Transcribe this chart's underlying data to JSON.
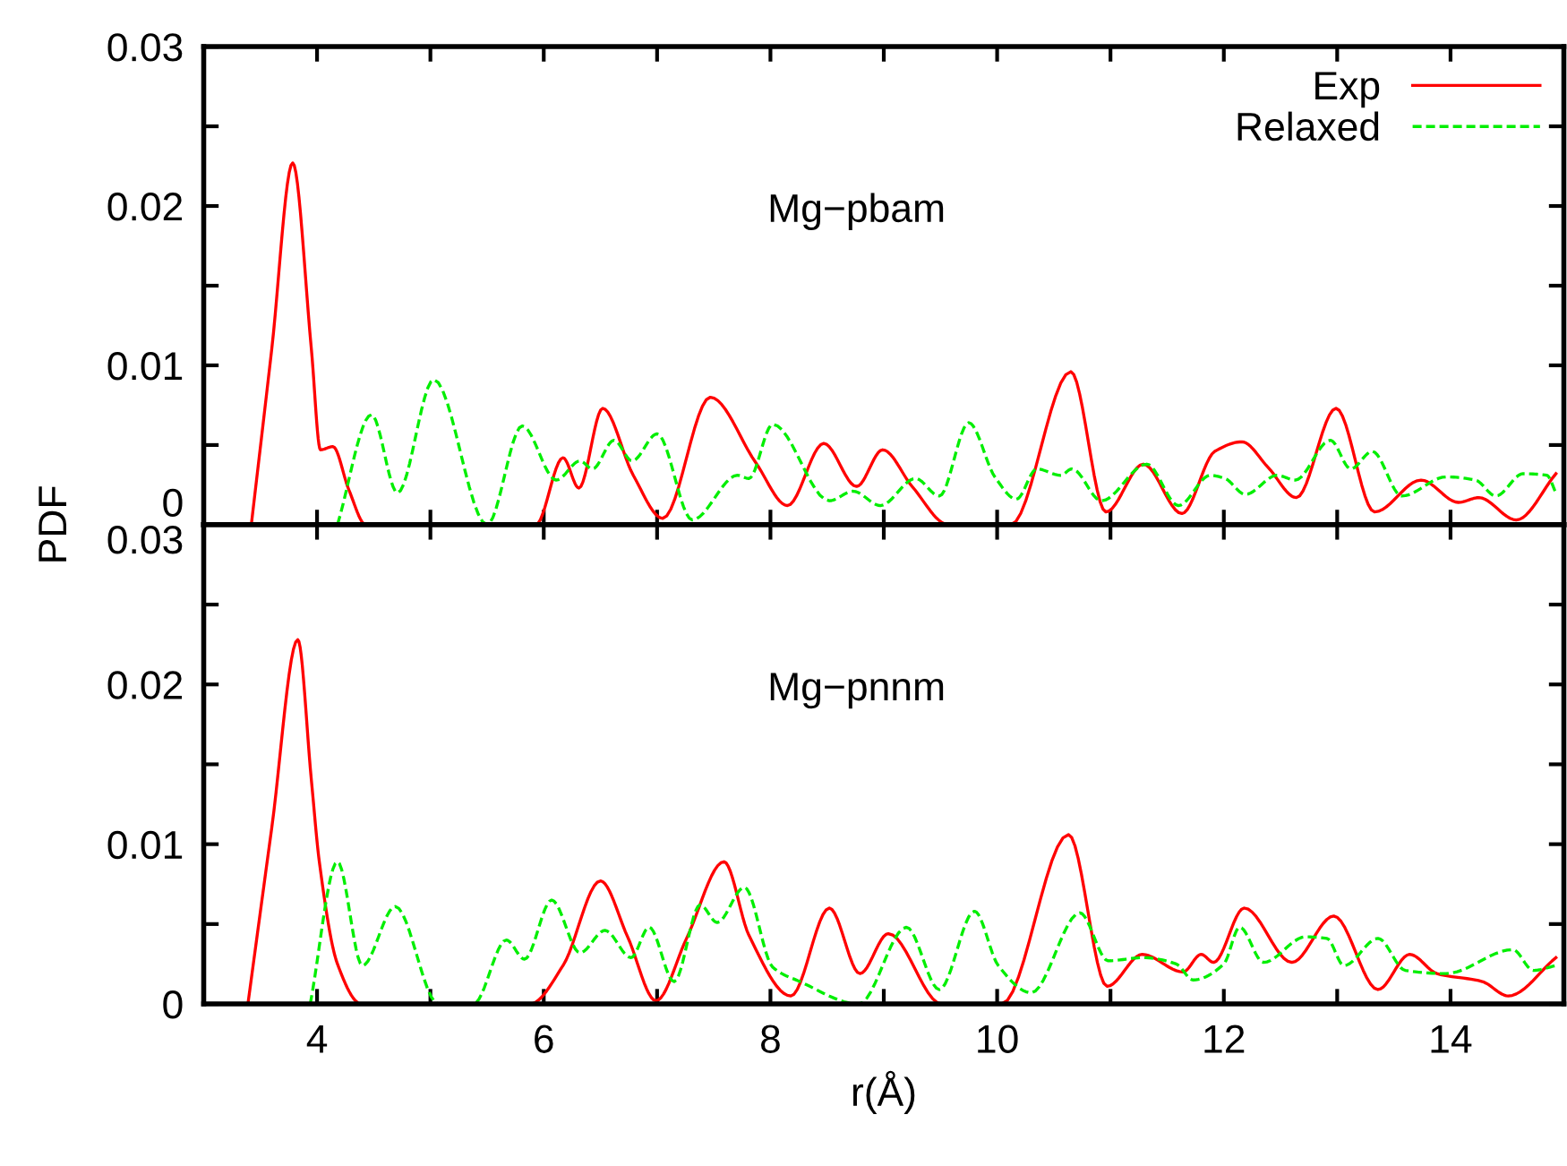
{
  "chart_data": [
    {
      "type": "line",
      "ylabel": "PDF",
      "annotations": [
        "Mg−pbam"
      ],
      "xlim": [
        3,
        15
      ],
      "ylim": [
        0,
        0.03
      ],
      "xticks": [
        4,
        {
          "value": 5,
          "label": null
        },
        6,
        {
          "value": 7,
          "label": null
        },
        8,
        {
          "value": 9,
          "label": null
        },
        10,
        {
          "value": 11,
          "label": null
        },
        12,
        {
          "value": 13,
          "label": null
        },
        14
      ],
      "yticks": [
        0,
        {
          "value": 0.005,
          "label": null
        },
        0.01,
        {
          "value": 0.015,
          "label": null
        },
        0.02,
        {
          "value": 0.025,
          "label": null
        },
        0.03
      ],
      "tick_labels": "y",
      "legend": "top right",
      "grid": false,
      "series": [
        {
          "name": "Exp",
          "color": "#ff0000",
          "line_style": "solid",
          "x": [
            3.42,
            3.6,
            3.785,
            3.95,
            4.03,
            4.14,
            4.28,
            4.43,
            5.93,
            6.17,
            6.31,
            6.52,
            6.79,
            7.05,
            7.47,
            7.87,
            8.15,
            8.47,
            8.76,
            8.99,
            9.25,
            9.57,
            10.12,
            10.65,
            10.96,
            11.29,
            11.63,
            11.92,
            12.16,
            12.39,
            12.64,
            12.99,
            13.33,
            13.74,
            14.07,
            14.25,
            14.58,
            14.93
          ],
          "values": [
            0,
            0.011,
            0.0227,
            0.011,
            0.0047,
            0.0049,
            0.0022,
            0,
            0,
            0.0042,
            0.0023,
            0.0073,
            0.0031,
            0.0004,
            0.008,
            0.0039,
            0.0012,
            0.0051,
            0.0024,
            0.0047,
            0.0024,
            0,
            0,
            0.0096,
            0.0008,
            0.0038,
            0.0007,
            0.0046,
            0.0052,
            0.0036,
            0.0017,
            0.0073,
            0.0008,
            0.0028,
            0.0014,
            0.0017,
            0.0003,
            0.0032
          ]
        },
        {
          "name": "Relaxed",
          "color": "#00ee00",
          "line_style": "dashed",
          "x": [
            4.18,
            4.48,
            4.71,
            5.03,
            5.5,
            5.81,
            6.11,
            6.32,
            6.43,
            6.62,
            6.78,
            7.0,
            7.31,
            7.71,
            7.81,
            8.02,
            8.52,
            8.73,
            8.97,
            9.28,
            9.49,
            9.75,
            9.98,
            10.17,
            10.35,
            10.56,
            10.66,
            10.92,
            11.32,
            11.6,
            11.88,
            12.01,
            12.19,
            12.47,
            12.63,
            12.94,
            13.12,
            13.31,
            13.57,
            13.96,
            14.22,
            14.4,
            14.64,
            14.85,
            14.93
          ],
          "values": [
            0,
            0.0069,
            0.002,
            0.0091,
            0,
            0.0062,
            0.0028,
            0.004,
            0.0035,
            0.0053,
            0.004,
            0.0057,
            0.0003,
            0.0031,
            0.0029,
            0.0063,
            0.0015,
            0.0021,
            0.0012,
            0.0029,
            0.0018,
            0.0064,
            0.003,
            0.0016,
            0.0035,
            0.0031,
            0.0035,
            0.0015,
            0.0038,
            0.0012,
            0.0031,
            0.0029,
            0.0019,
            0.0031,
            0.0028,
            0.0053,
            0.0035,
            0.0046,
            0.0018,
            0.003,
            0.0028,
            0.0018,
            0.0032,
            0.0031,
            0.002
          ]
        }
      ]
    },
    {
      "type": "line",
      "xlabel": "r(Å)",
      "annotations": [
        "Mg−pnnm"
      ],
      "xlim": [
        3,
        15
      ],
      "ylim": [
        0,
        0.03
      ],
      "xticks": [
        4,
        {
          "value": 5,
          "label": null
        },
        6,
        {
          "value": 7,
          "label": null
        },
        8,
        {
          "value": 9,
          "label": null
        },
        10,
        {
          "value": 11,
          "label": null
        },
        12,
        {
          "value": 13,
          "label": null
        },
        14
      ],
      "yticks": [
        0,
        {
          "value": 0.005,
          "label": null
        },
        0.01,
        {
          "value": 0.015,
          "label": null
        },
        0.02,
        {
          "value": 0.025,
          "label": null
        },
        0.03
      ],
      "grid": false,
      "series": [
        {
          "color": "#ff0000",
          "line_style": "solid",
          "x": [
            3.39,
            3.6,
            3.83,
            3.95,
            4.02,
            4.18,
            4.39,
            5.88,
            6.17,
            6.5,
            6.74,
            6.99,
            7.26,
            7.59,
            7.81,
            8.18,
            8.52,
            8.79,
            9.04,
            9.51,
            10.04,
            10.63,
            10.97,
            11.28,
            11.64,
            11.8,
            11.91,
            12.18,
            12.6,
            12.97,
            13.36,
            13.64,
            13.88,
            14.28,
            14.51,
            14.93
          ],
          "values": [
            0,
            0.011,
            0.0228,
            0.014,
            0.0089,
            0.0025,
            0,
            0,
            0.0024,
            0.0077,
            0.0042,
            0.0002,
            0.0041,
            0.0089,
            0.0043,
            0.0005,
            0.006,
            0.0019,
            0.0044,
            0,
            0,
            0.0106,
            0.0011,
            0.0031,
            0.002,
            0.0031,
            0.0026,
            0.006,
            0.0026,
            0.0055,
            0.0009,
            0.0031,
            0.0019,
            0.0014,
            0.0005,
            0.0029
          ]
        },
        {
          "color": "#00ee00",
          "line_style": "dashed",
          "x": [
            3.94,
            4.18,
            4.4,
            4.69,
            5.07,
            5.38,
            5.67,
            5.83,
            6.07,
            6.32,
            6.54,
            6.77,
            6.93,
            7.15,
            7.38,
            7.53,
            7.77,
            8.02,
            8.26,
            8.78,
            9.2,
            9.49,
            9.8,
            10.01,
            10.3,
            10.73,
            10.98,
            11.29,
            11.58,
            11.73,
            12.0,
            12.14,
            12.35,
            12.72,
            12.91,
            13.06,
            13.36,
            13.6,
            13.96,
            14.55,
            14.73,
            14.93
          ],
          "values": [
            0,
            0.0089,
            0.0024,
            0.0061,
            0,
            0,
            0.004,
            0.0028,
            0.0065,
            0.0032,
            0.0046,
            0.0029,
            0.0048,
            0.0014,
            0.0062,
            0.0051,
            0.0073,
            0.0023,
            0.0014,
            0,
            0.0048,
            0.0009,
            0.0058,
            0.0024,
            0.0007,
            0.0057,
            0.0027,
            0.0029,
            0.0025,
            0.0015,
            0.0025,
            0.0048,
            0.0026,
            0.0042,
            0.0041,
            0.0024,
            0.0041,
            0.0021,
            0.0019,
            0.0034,
            0.0021,
            0.0024
          ]
        }
      ]
    }
  ]
}
